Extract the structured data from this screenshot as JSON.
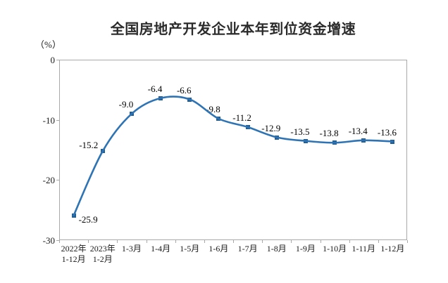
{
  "chart_data": {
    "type": "line",
    "title": "全国房地产开发企业本年到位资金增速",
    "unit_label": "（%）",
    "categories": [
      {
        "line1": "2022年",
        "line2": "1-12月"
      },
      {
        "line1": "2023年",
        "line2": "1-2月"
      },
      {
        "line1": "1-3月",
        "line2": ""
      },
      {
        "line1": "1-4月",
        "line2": ""
      },
      {
        "line1": "1-5月",
        "line2": ""
      },
      {
        "line1": "1-6月",
        "line2": ""
      },
      {
        "line1": "1-7月",
        "line2": ""
      },
      {
        "line1": "1-8月",
        "line2": ""
      },
      {
        "line1": "1-9月",
        "line2": ""
      },
      {
        "line1": "1-10月",
        "line2": ""
      },
      {
        "line1": "1-11月",
        "line2": ""
      },
      {
        "line1": "1-12月",
        "line2": ""
      }
    ],
    "values": [
      -25.9,
      -15.2,
      -9.0,
      -6.4,
      -6.6,
      -9.8,
      -11.2,
      -12.9,
      -13.5,
      -13.8,
      -13.4,
      -13.6
    ],
    "data_labels": [
      "-25.9",
      "-15.2",
      "-9.0",
      "-6.4",
      "-6.6",
      "-9.8",
      "-11.2",
      "-12.9",
      "-13.5",
      "-13.8",
      "-13.4",
      "-13.6"
    ],
    "yticks": [
      "0",
      "-10",
      "-20",
      "-30"
    ],
    "ylim": [
      -30,
      0
    ],
    "xlabel": "",
    "ylabel": "（%）",
    "grid": "off",
    "legend": "none",
    "line_color": "#2e74b5",
    "marker_color": "#255e91",
    "axis_color": "#a9a9a9",
    "label_color": "#000000"
  }
}
